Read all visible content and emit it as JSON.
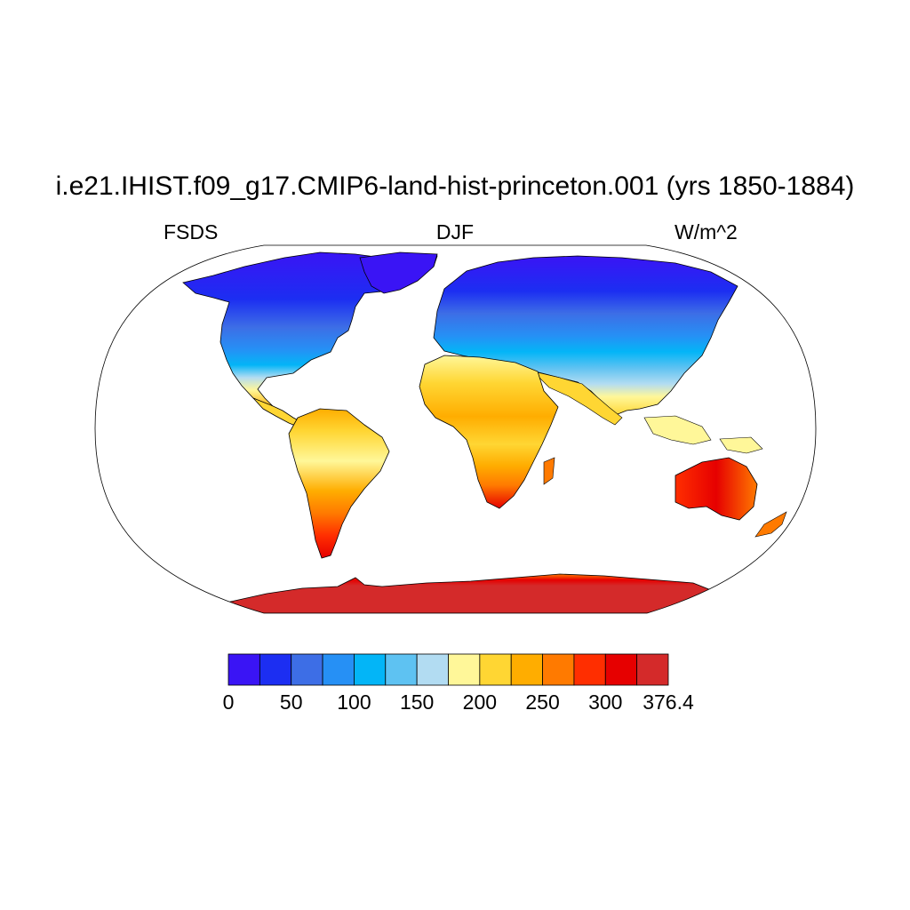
{
  "title": "i.e21.IHIST.f09_g17.CMIP6-land-hist-princeton.001 (yrs 1850-1884)",
  "left_label": "FSDS",
  "center_label": "DJF",
  "right_label": "W/m^2",
  "map": {
    "projection": "robinson",
    "variable": "FSDS",
    "season": "DJF",
    "units": "W/m^2",
    "ocean_color": "#ffffff",
    "coastline_color": "#000000"
  },
  "colorbar": {
    "colors": [
      "#3a14f5",
      "#1c2ef2",
      "#3d6ee6",
      "#2690f5",
      "#03b5f7",
      "#5ec2f2",
      "#b2dcf2",
      "#fff799",
      "#ffd633",
      "#ffad00",
      "#ff7a00",
      "#ff2e00",
      "#e60000",
      "#d42a2a"
    ],
    "tick_labels": [
      "0",
      "50",
      "100",
      "150",
      "200",
      "250",
      "300",
      "376.4"
    ],
    "min": 0,
    "max": 376.4
  }
}
